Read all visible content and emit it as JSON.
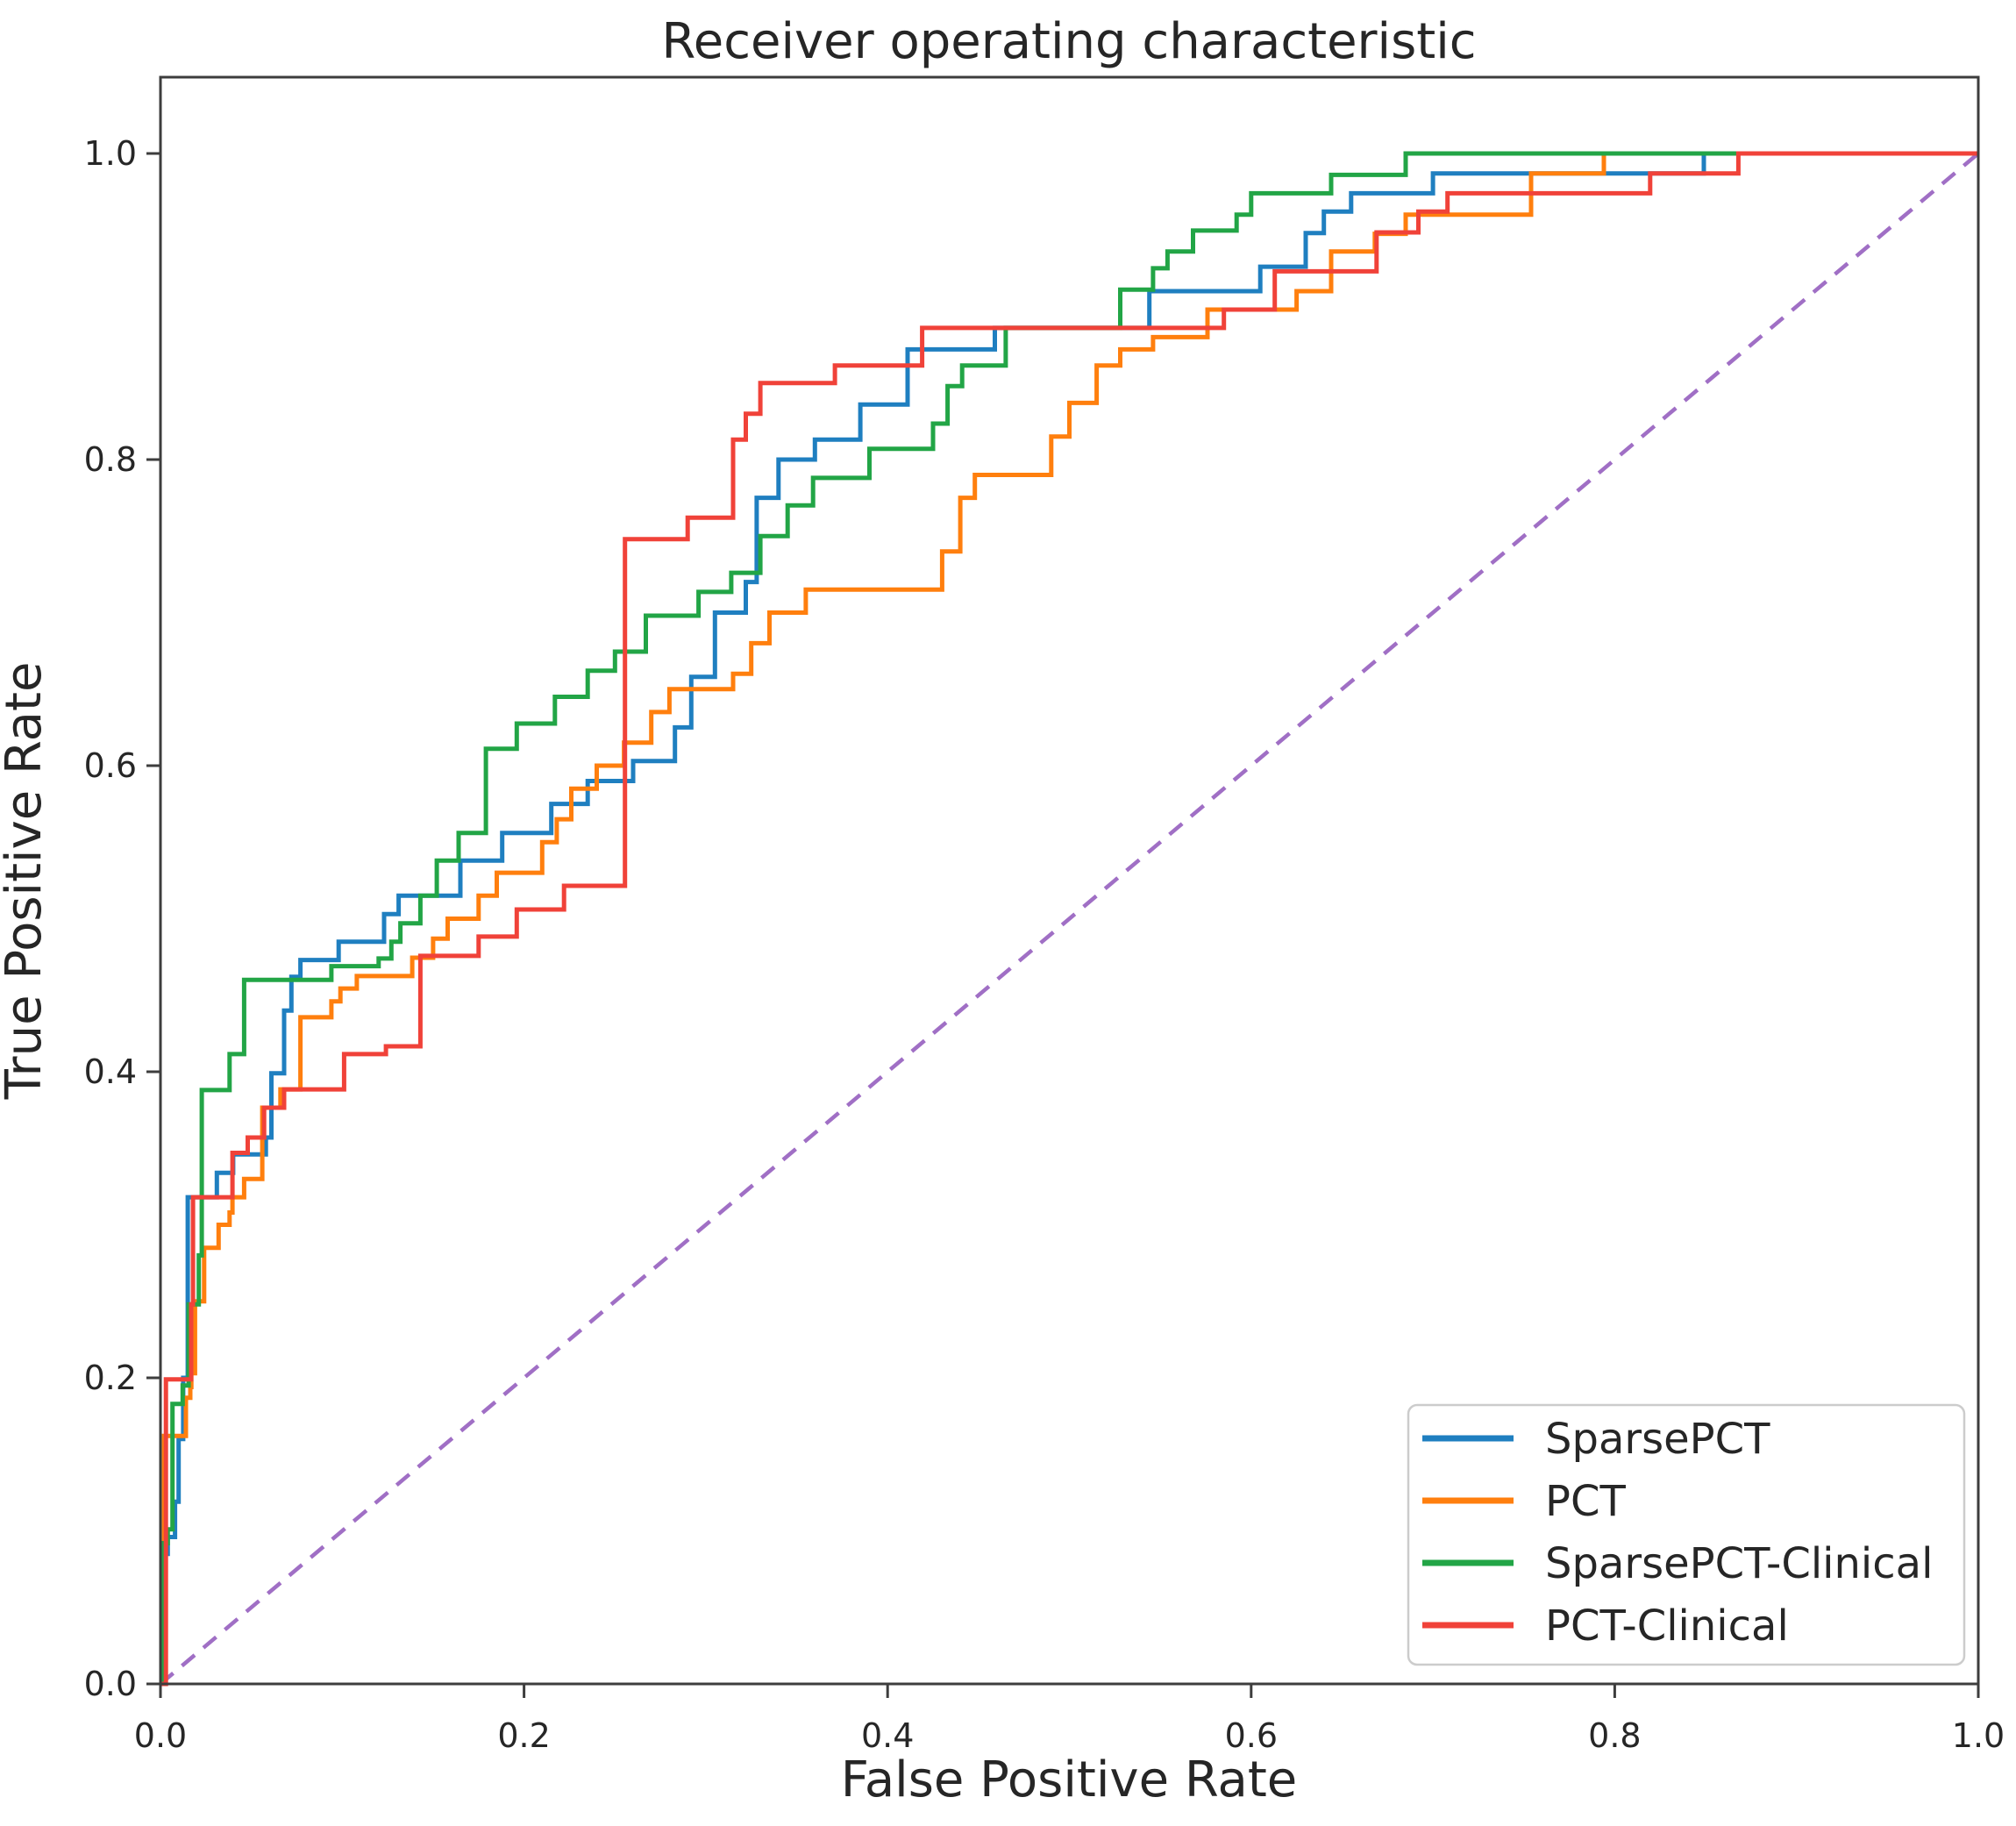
{
  "chart_data": {
    "type": "line",
    "variant": "roc_step_curves",
    "title": "Receiver operating characteristic",
    "xlabel": "False Positive Rate",
    "ylabel": "True Positive Rate",
    "xlim": [
      0.0,
      1.0
    ],
    "ylim": [
      0.0,
      1.05
    ],
    "grid": false,
    "background_color": "#ffffff",
    "text_color": "#262626",
    "spine_color": "#3d3d3d",
    "x_ticks": {
      "values": [
        0.0,
        0.2,
        0.4,
        0.6,
        0.8,
        1.0
      ],
      "labels": [
        "0.0",
        "0.2",
        "0.4",
        "0.6",
        "0.8",
        "1.0"
      ]
    },
    "y_ticks": {
      "values": [
        0.0,
        0.2,
        0.4,
        0.6,
        0.8,
        1.0
      ],
      "labels": [
        "0.0",
        "0.2",
        "0.4",
        "0.6",
        "0.8",
        "1.0"
      ]
    },
    "legend": {
      "position": "lower right",
      "entries": [
        {
          "label": "SparsePCT",
          "color": "#1f7fc0"
        },
        {
          "label": "PCT",
          "color": "#ff7f0e"
        },
        {
          "label": "SparsePCT-Clinical",
          "color": "#22a546"
        },
        {
          "label": "PCT-Clinical",
          "color": "#f04239"
        }
      ]
    },
    "diagonal": {
      "name": "chance line",
      "style": "dashed",
      "color": "#a06fc5",
      "points": [
        [
          0,
          0
        ],
        [
          1,
          1
        ]
      ]
    },
    "series": [
      {
        "name": "SparsePCT",
        "color": "#1f7fc0",
        "points": [
          [
            0,
            0
          ],
          [
            0.002,
            0.085
          ],
          [
            0.004,
            0.096
          ],
          [
            0.008,
            0.119
          ],
          [
            0.01,
            0.16
          ],
          [
            0.0125,
            0.2
          ],
          [
            0.015,
            0.318
          ],
          [
            0.031,
            0.334
          ],
          [
            0.04,
            0.346
          ],
          [
            0.058,
            0.357
          ],
          [
            0.061,
            0.399
          ],
          [
            0.068,
            0.44
          ],
          [
            0.072,
            0.462
          ],
          [
            0.077,
            0.473
          ],
          [
            0.098,
            0.485
          ],
          [
            0.123,
            0.503
          ],
          [
            0.131,
            0.515
          ],
          [
            0.165,
            0.538
          ],
          [
            0.188,
            0.556
          ],
          [
            0.215,
            0.575
          ],
          [
            0.235,
            0.59
          ],
          [
            0.26,
            0.603
          ],
          [
            0.283,
            0.625
          ],
          [
            0.292,
            0.658
          ],
          [
            0.305,
            0.7
          ],
          [
            0.322,
            0.72
          ],
          [
            0.328,
            0.775
          ],
          [
            0.34,
            0.8
          ],
          [
            0.36,
            0.813
          ],
          [
            0.385,
            0.836
          ],
          [
            0.411,
            0.872
          ],
          [
            0.459,
            0.886
          ],
          [
            0.544,
            0.91
          ],
          [
            0.605,
            0.926
          ],
          [
            0.63,
            0.948
          ],
          [
            0.64,
            0.962
          ],
          [
            0.655,
            0.974
          ],
          [
            0.7,
            0.987
          ],
          [
            0.849,
            1.0
          ],
          [
            1.0,
            1.0
          ]
        ]
      },
      {
        "name": "PCT",
        "color": "#ff7f0e",
        "points": [
          [
            0,
            0
          ],
          [
            0.002,
            0.162
          ],
          [
            0.014,
            0.187
          ],
          [
            0.0164,
            0.194
          ],
          [
            0.017,
            0.203
          ],
          [
            0.019,
            0.25
          ],
          [
            0.024,
            0.285
          ],
          [
            0.032,
            0.3
          ],
          [
            0.038,
            0.308
          ],
          [
            0.0396,
            0.318
          ],
          [
            0.046,
            0.33
          ],
          [
            0.056,
            0.3765
          ],
          [
            0.066,
            0.3885
          ],
          [
            0.077,
            0.4356
          ],
          [
            0.094,
            0.446
          ],
          [
            0.099,
            0.4544
          ],
          [
            0.108,
            0.4625
          ],
          [
            0.1385,
            0.4745
          ],
          [
            0.15,
            0.487
          ],
          [
            0.158,
            0.5
          ],
          [
            0.175,
            0.515
          ],
          [
            0.185,
            0.53
          ],
          [
            0.21,
            0.55
          ],
          [
            0.218,
            0.565
          ],
          [
            0.226,
            0.585
          ],
          [
            0.24,
            0.6
          ],
          [
            0.255,
            0.615
          ],
          [
            0.27,
            0.635
          ],
          [
            0.28,
            0.65
          ],
          [
            0.315,
            0.66
          ],
          [
            0.325,
            0.68
          ],
          [
            0.335,
            0.7
          ],
          [
            0.355,
            0.715
          ],
          [
            0.43,
            0.74
          ],
          [
            0.44,
            0.775
          ],
          [
            0.448,
            0.79
          ],
          [
            0.49,
            0.815
          ],
          [
            0.5,
            0.837
          ],
          [
            0.515,
            0.8615
          ],
          [
            0.528,
            0.872
          ],
          [
            0.546,
            0.88
          ],
          [
            0.576,
            0.898
          ],
          [
            0.625,
            0.91
          ],
          [
            0.644,
            0.936
          ],
          [
            0.668,
            0.9475
          ],
          [
            0.685,
            0.96
          ],
          [
            0.754,
            0.987
          ],
          [
            0.794,
            1.0
          ],
          [
            1.0,
            1.0
          ]
        ]
      },
      {
        "name": "SparsePCT-Clinical",
        "color": "#22a546",
        "points": [
          [
            0,
            0
          ],
          [
            0.0015,
            0.092
          ],
          [
            0.004,
            0.101
          ],
          [
            0.0066,
            0.183
          ],
          [
            0.0122,
            0.195
          ],
          [
            0.0155,
            0.248
          ],
          [
            0.0211,
            0.28
          ],
          [
            0.0227,
            0.388
          ],
          [
            0.038,
            0.4115
          ],
          [
            0.046,
            0.46
          ],
          [
            0.094,
            0.469
          ],
          [
            0.12,
            0.474
          ],
          [
            0.127,
            0.485
          ],
          [
            0.132,
            0.497
          ],
          [
            0.143,
            0.515
          ],
          [
            0.152,
            0.538
          ],
          [
            0.164,
            0.556
          ],
          [
            0.179,
            0.611
          ],
          [
            0.196,
            0.6275
          ],
          [
            0.217,
            0.645
          ],
          [
            0.235,
            0.662
          ],
          [
            0.25,
            0.6745
          ],
          [
            0.267,
            0.698
          ],
          [
            0.296,
            0.7135
          ],
          [
            0.314,
            0.726
          ],
          [
            0.33,
            0.75
          ],
          [
            0.345,
            0.77
          ],
          [
            0.359,
            0.788
          ],
          [
            0.39,
            0.807
          ],
          [
            0.425,
            0.8235
          ],
          [
            0.433,
            0.848
          ],
          [
            0.441,
            0.8615
          ],
          [
            0.465,
            0.886
          ],
          [
            0.528,
            0.911
          ],
          [
            0.546,
            0.925
          ],
          [
            0.554,
            0.936
          ],
          [
            0.568,
            0.9496
          ],
          [
            0.592,
            0.96
          ],
          [
            0.6,
            0.974
          ],
          [
            0.644,
            0.986
          ],
          [
            0.685,
            1.0
          ],
          [
            1.0,
            1.0
          ]
        ]
      },
      {
        "name": "PCT-Clinical",
        "color": "#f04239",
        "points": [
          [
            0,
            0
          ],
          [
            0.003,
            0.199
          ],
          [
            0.0169,
            0.248
          ],
          [
            0.0179,
            0.318
          ],
          [
            0.0396,
            0.347
          ],
          [
            0.048,
            0.357
          ],
          [
            0.057,
            0.3765
          ],
          [
            0.068,
            0.3885
          ],
          [
            0.101,
            0.4115
          ],
          [
            0.124,
            0.4166
          ],
          [
            0.143,
            0.4757
          ],
          [
            0.175,
            0.4883
          ],
          [
            0.196,
            0.506
          ],
          [
            0.222,
            0.5215
          ],
          [
            0.2555,
            0.748
          ],
          [
            0.29,
            0.762
          ],
          [
            0.315,
            0.813
          ],
          [
            0.322,
            0.83
          ],
          [
            0.33,
            0.85
          ],
          [
            0.371,
            0.8615
          ],
          [
            0.419,
            0.886
          ],
          [
            0.585,
            0.898
          ],
          [
            0.613,
            0.923
          ],
          [
            0.669,
            0.9484
          ],
          [
            0.692,
            0.962
          ],
          [
            0.708,
            0.974
          ],
          [
            0.8195,
            0.987
          ],
          [
            0.868,
            1.0
          ],
          [
            1.0,
            1.0
          ]
        ]
      }
    ]
  }
}
